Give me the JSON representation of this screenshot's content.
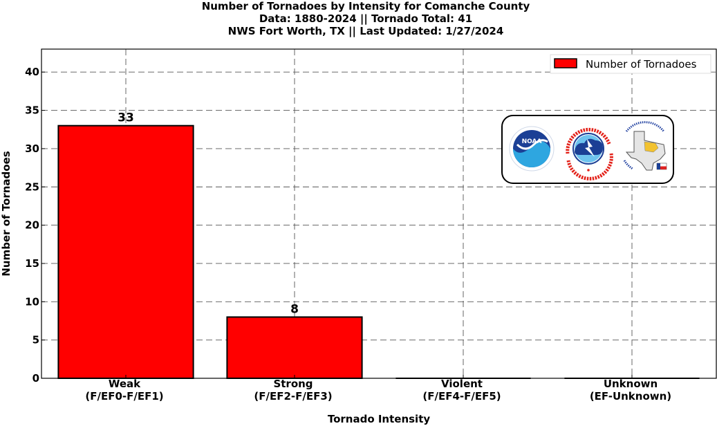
{
  "chart_data": {
    "type": "bar",
    "title": [
      "Number of Tornadoes by Intensity for Comanche County",
      "Data: 1880-2024 || Tornado Total: 41",
      "NWS Fort Worth, TX || Last Updated: 1/27/2024"
    ],
    "categories": [
      [
        "Weak",
        "(F/EF0-F/EF1)"
      ],
      [
        "Strong",
        "(F/EF2-F/EF3)"
      ],
      [
        "Violent",
        "(F/EF4-F/EF5)"
      ],
      [
        "Unknown",
        "(EF-Unknown)"
      ]
    ],
    "series": [
      {
        "name": "Number of Tornadoes",
        "values": [
          33,
          8,
          0,
          0
        ],
        "color": "#ff0000"
      }
    ],
    "data_labels": [
      "33",
      "8",
      "",
      ""
    ],
    "xlabel": "Tornado Intensity",
    "ylabel": "Number of Tornadoes",
    "ylim": [
      0,
      43
    ],
    "yticks": [
      0,
      5,
      10,
      15,
      20,
      25,
      30,
      35,
      40
    ],
    "grid": true,
    "legend_position": "top-right",
    "logos": [
      "noaa-logo",
      "national-weather-service-logo",
      "nws-fort-worth-logo"
    ]
  },
  "logos": {
    "noaa_text": "NOAA",
    "nws_text": "NATIONAL WEATHER SERVICE",
    "fw_text": "Protecting Life And Property Across North Texas",
    "fw_since": "Since 1870"
  }
}
